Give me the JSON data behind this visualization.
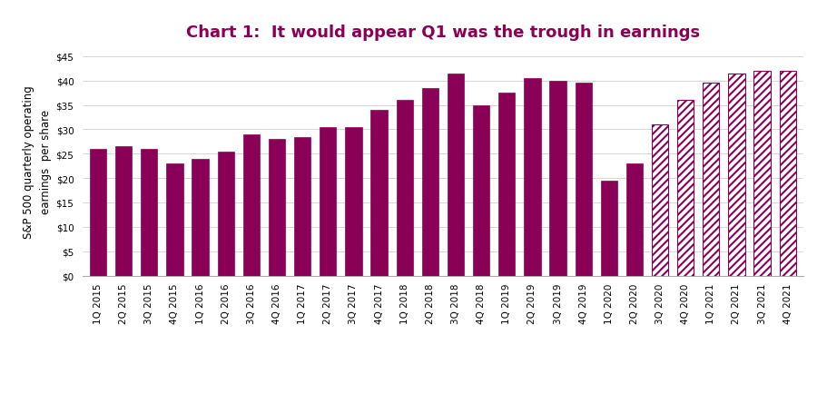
{
  "title": "Chart 1:  It would appear Q1 was the trough in earnings",
  "ylabel": "S&P 500 quarterly operating\nearnings  per share",
  "categories": [
    "1Q 2015",
    "2Q 2015",
    "3Q 2015",
    "4Q 2015",
    "1Q 2016",
    "2Q 2016",
    "3Q 2016",
    "4Q 2016",
    "1Q 2017",
    "2Q 2017",
    "3Q 2017",
    "4Q 2017",
    "1Q 2018",
    "2Q 2018",
    "3Q 2018",
    "4Q 2018",
    "1Q 2019",
    "2Q 2019",
    "3Q 2019",
    "4Q 2019",
    "1Q 2020",
    "2Q 2020",
    "3Q 2020",
    "4Q 2020",
    "1Q 2021",
    "2Q 2021",
    "3Q 2021",
    "4Q 2021"
  ],
  "values": [
    26.0,
    26.5,
    26.0,
    23.0,
    24.0,
    25.5,
    29.0,
    28.0,
    28.5,
    30.5,
    30.5,
    34.0,
    36.0,
    38.5,
    41.5,
    35.0,
    37.5,
    40.5,
    40.0,
    39.5,
    19.5,
    23.0,
    31.0,
    36.0,
    39.5,
    41.5,
    42.0,
    42.0
  ],
  "is_estimated": [
    false,
    false,
    false,
    false,
    false,
    false,
    false,
    false,
    false,
    false,
    false,
    false,
    false,
    false,
    false,
    false,
    false,
    false,
    false,
    false,
    false,
    false,
    true,
    true,
    true,
    true,
    true,
    true
  ],
  "bar_color": "#8B0057",
  "background_color": "#ffffff",
  "ylim": [
    0,
    47
  ],
  "yticks": [
    0,
    5,
    10,
    15,
    20,
    25,
    30,
    35,
    40,
    45
  ],
  "ytick_labels": [
    "$0",
    "$5",
    "$10",
    "$15",
    "$20",
    "$25",
    "$30",
    "$35",
    "$40",
    "$45"
  ],
  "title_color": "#8B0057",
  "title_fontsize": 13,
  "ylabel_fontsize": 8.5,
  "tick_fontsize": 7.5,
  "bar_width": 0.65
}
